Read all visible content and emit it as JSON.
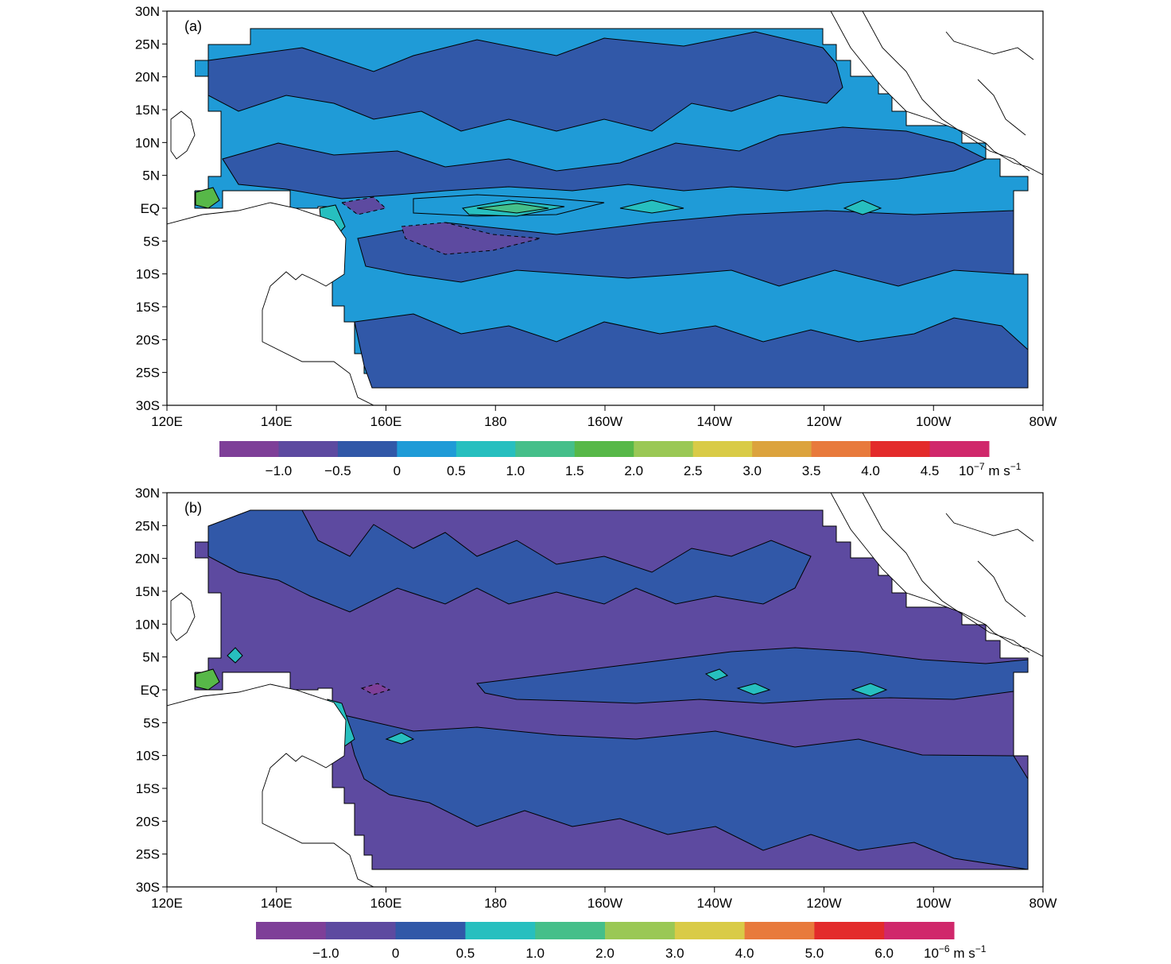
{
  "colors": {
    "purple_dark": "#7e3f98",
    "purple": "#5d4aa0",
    "blue_dark": "#3158a8",
    "blue": "#1f9bd7",
    "cyan": "#27bfbf",
    "teal_green": "#45bf8a",
    "green": "#57b848",
    "light_green": "#9ac855",
    "yellow": "#d9cb47",
    "orange": "#dca33d",
    "orange_red": "#e87a3c",
    "red": "#e32b2b",
    "magenta": "#d0286b",
    "contour": "#000000"
  },
  "axes": {
    "lat_ticks": [
      "30N",
      "25N",
      "20N",
      "15N",
      "10N",
      "5N",
      "EQ",
      "5S",
      "10S",
      "15S",
      "20S",
      "25S",
      "30S"
    ],
    "lon_ticks": [
      "120E",
      "140E",
      "160E",
      "180",
      "160W",
      "140W",
      "120W",
      "100W",
      "80W"
    ]
  },
  "panels": [
    {
      "label": "(a)",
      "background_fill": "blue",
      "colorbar": {
        "colors": [
          "purple_dark",
          "purple",
          "blue_dark",
          "blue",
          "cyan",
          "teal_green",
          "green",
          "light_green",
          "yellow",
          "orange",
          "orange_red",
          "red",
          "magenta"
        ],
        "labels": [
          "−1.0",
          "−0.5",
          "0",
          "0.5",
          "1.0",
          "1.5",
          "2.0",
          "2.5",
          "3.0",
          "3.5",
          "4.0",
          "4.5"
        ],
        "unit_prefix": "10",
        "unit_exp": "−7",
        "unit_suffix": " m s",
        "unit_suffix_exp": "−1"
      }
    },
    {
      "label": "(b)",
      "background_fill": "purple",
      "colorbar": {
        "colors": [
          "purple_dark",
          "purple",
          "blue_dark",
          "cyan",
          "teal_green",
          "light_green",
          "yellow",
          "orange_red",
          "red",
          "magenta"
        ],
        "labels": [
          "−1.0",
          "0",
          "0.5",
          "1.0",
          "2.0",
          "3.0",
          "4.0",
          "5.0",
          "6.0"
        ],
        "unit_prefix": "10",
        "unit_exp": "−6",
        "unit_suffix": " m s",
        "unit_suffix_exp": "−1"
      }
    }
  ]
}
